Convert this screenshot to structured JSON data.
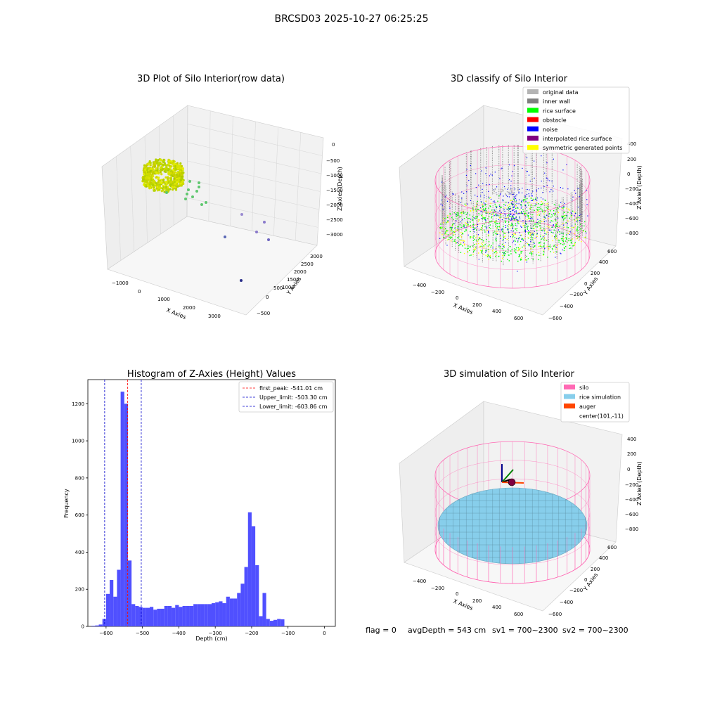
{
  "suptitle": "BRCSD03 2025-10-27 06:25:25",
  "footer": {
    "flag": "flag = 0",
    "avg": "avgDepth = 543 cm",
    "sv1": "sv1 = 700~2300",
    "sv2": "sv2 = 700~2300"
  },
  "colors": {
    "grid": "#d9d9d9",
    "pane": "#f2f2f2",
    "hist": "#5050ff",
    "peak": "#ff0000",
    "limit": "#0000cc",
    "silo": "#ff69b4",
    "rice": "#87ceeb",
    "auger": "#ff4500",
    "green": "#00ff00",
    "noise": "#0000ff",
    "wall": "#808080",
    "yellow": "#ffff00"
  },
  "panel1": {
    "title": "3D Plot of Silo Interior(row data)",
    "xlabel": "X Axies",
    "ylabel": "Y Axies",
    "zlabel": "Z Axies (Depth)",
    "xticks": [
      "−1000",
      "0",
      "1000",
      "2000",
      "3000"
    ],
    "yticks": [
      "−500",
      "0",
      "500",
      "1000",
      "1500",
      "2000",
      "2500",
      "3000"
    ],
    "zticks": [
      "0",
      "−500",
      "−1000",
      "−1500",
      "−2000",
      "−2500",
      "−3000"
    ]
  },
  "panel2": {
    "title": "3D classify of Silo Interior",
    "xlabel": "X Axies",
    "ylabel": "Y Axies",
    "zlabel": "Z Axies (Depth)",
    "xticks": [
      "−400",
      "−200",
      "0",
      "200",
      "400",
      "600"
    ],
    "yticks": [
      "−600",
      "−400",
      "−200",
      "0",
      "200",
      "400",
      "600"
    ],
    "zticks": [
      "200",
      "0",
      "−200",
      "−400",
      "−600",
      "−800"
    ],
    "zticks_top": "400",
    "legend": [
      {
        "label": "original data",
        "color": "#b4b4b4"
      },
      {
        "label": "inner wall",
        "color": "#808080"
      },
      {
        "label": "rice surface",
        "color": "#00ff00"
      },
      {
        "label": "obstacle",
        "color": "#ff0000"
      },
      {
        "label": "noise",
        "color": "#0000ff"
      },
      {
        "label": "interpolated rice surface",
        "color": "#800080"
      },
      {
        "label": "symmetric generated points",
        "color": "#ffff00"
      }
    ]
  },
  "panel4": {
    "title": "3D simulation of Silo Interior",
    "xlabel": "X Axies",
    "ylabel": "Y Axies",
    "zlabel": "Z Axies (Depth)",
    "xticks": [
      "−400",
      "−200",
      "0",
      "200",
      "400",
      "600"
    ],
    "yticks": [
      "−600",
      "−400",
      "−200",
      "0",
      "200",
      "400",
      "600"
    ],
    "zticks": [
      "400",
      "200",
      "0",
      "−200",
      "−400",
      "−600",
      "−800"
    ],
    "legend": [
      {
        "label": "silo",
        "color": "#ff69b4"
      },
      {
        "label": "rice simulation",
        "color": "#87ceeb"
      },
      {
        "label": "auger",
        "color": "#ff4500"
      },
      {
        "label": "center(101,-11)",
        "color": ""
      }
    ]
  },
  "chart_data": {
    "type": "bar",
    "title": "Histogram of Z-Axies (Height) Values",
    "xlabel": "Depth (cm)",
    "ylabel": "Frequency",
    "xlim": [
      -650,
      30
    ],
    "ylim": [
      0,
      1330
    ],
    "xticks": [
      -600,
      -500,
      -400,
      -300,
      -200,
      -100,
      0
    ],
    "yticks": [
      0,
      200,
      400,
      600,
      800,
      1000,
      1200
    ],
    "bin_width": 10,
    "bin_starts": [
      -640,
      -630,
      -620,
      -610,
      -600,
      -590,
      -580,
      -570,
      -560,
      -550,
      -540,
      -530,
      -520,
      -510,
      -500,
      -490,
      -480,
      -470,
      -460,
      -450,
      -440,
      -430,
      -420,
      -410,
      -400,
      -390,
      -380,
      -370,
      -360,
      -350,
      -340,
      -330,
      -320,
      -310,
      -300,
      -290,
      -280,
      -270,
      -260,
      -250,
      -240,
      -230,
      -220,
      -210,
      -200,
      -190,
      -180,
      -170,
      -160,
      -150,
      -140,
      -130,
      -120,
      -110,
      -100,
      -90,
      -80,
      -70,
      -60,
      -50,
      -40,
      -30,
      -20,
      -10
    ],
    "counts": [
      3,
      5,
      10,
      40,
      175,
      250,
      160,
      305,
      1265,
      1200,
      355,
      120,
      110,
      105,
      100,
      100,
      105,
      90,
      95,
      95,
      110,
      110,
      100,
      115,
      105,
      110,
      110,
      110,
      120,
      120,
      120,
      120,
      120,
      125,
      130,
      135,
      125,
      160,
      150,
      150,
      180,
      230,
      320,
      615,
      540,
      330,
      55,
      180,
      40,
      30,
      35,
      40,
      38,
      0,
      0,
      0,
      0,
      0,
      0,
      0,
      0,
      0,
      0,
      0
    ],
    "vlines": [
      {
        "label": "first_peak: -541.01 cm",
        "x": -541.01,
        "color": "#ff0000"
      },
      {
        "label": "Upper_limit: -503.30 cm",
        "x": -503.3,
        "color": "#0000cc"
      },
      {
        "label": "Lower_limit: -603.86 cm",
        "x": -603.86,
        "color": "#0000cc"
      }
    ]
  }
}
